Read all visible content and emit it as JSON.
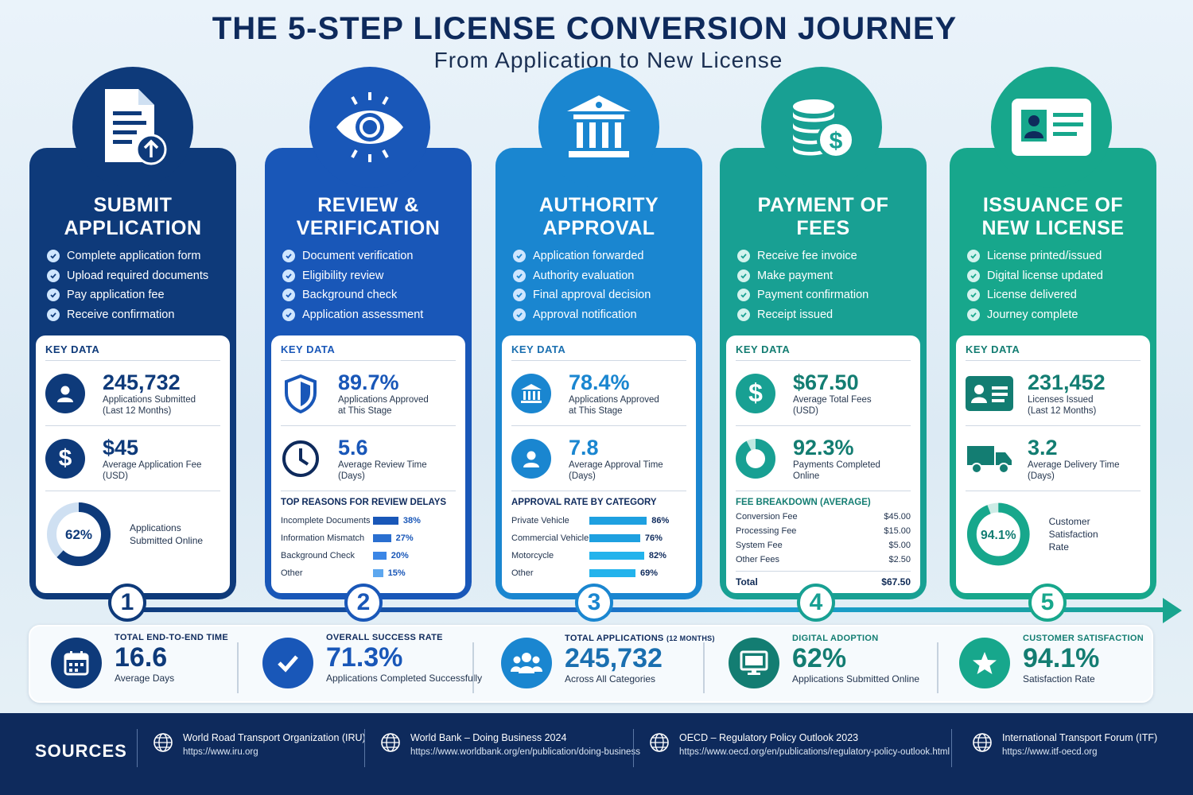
{
  "header": {
    "title": "THE 5-STEP LICENSE CONVERSION JOURNEY",
    "subtitle": "From Application to New License"
  },
  "colors": {
    "step1": "#0e3a7a",
    "step2": "#1957b8",
    "step3": "#1a86d0",
    "step4": "#18a093",
    "step5": "#17a78c",
    "navy": "#0e2a5c"
  },
  "key_data_label": "KEY DATA",
  "steps": [
    {
      "number": "1",
      "icon": "document-upload-icon",
      "title_line1": "SUBMIT",
      "title_line2": "APPLICATION",
      "checks": [
        "Complete application form",
        "Upload required documents",
        "Pay application fee",
        "Receive confirmation"
      ],
      "stat1": {
        "icon": "person-icon",
        "value": "245,732",
        "label1": "Applications Submitted",
        "label2": "(Last 12 Months)"
      },
      "stat2": {
        "icon": "dollar-icon",
        "value": "$45",
        "label1": "Average Application Fee",
        "label2": "(USD)"
      },
      "donut": {
        "value": "62%",
        "fraction": 0.62,
        "label1": "Applications",
        "label2": "Submitted Online"
      }
    },
    {
      "number": "2",
      "icon": "eye-icon",
      "title_line1": "REVIEW &",
      "title_line2": "VERIFICATION",
      "checks": [
        "Document verification",
        "Eligibility review",
        "Background check",
        "Application assessment"
      ],
      "stat1": {
        "icon": "shield-icon",
        "value": "89.7%",
        "label1": "Applications Approved",
        "label2": "at This Stage"
      },
      "stat2": {
        "icon": "clock-icon",
        "value": "5.6",
        "label1": "Average Review Time",
        "label2": "(Days)"
      },
      "bars_title": "TOP REASONS FOR REVIEW DELAYS",
      "bars": [
        {
          "label": "Incomplete Documents",
          "value": "38%",
          "pct": 38
        },
        {
          "label": "Information Mismatch",
          "value": "27%",
          "pct": 27
        },
        {
          "label": "Background Check",
          "value": "20%",
          "pct": 20
        },
        {
          "label": "Other",
          "value": "15%",
          "pct": 15
        }
      ]
    },
    {
      "number": "3",
      "icon": "government-building-icon",
      "title_line1": "AUTHORITY",
      "title_line2": "APPROVAL",
      "checks": [
        "Application forwarded",
        "Authority evaluation",
        "Final approval decision",
        "Approval notification"
      ],
      "stat1": {
        "icon": "bank-icon",
        "value": "78.4%",
        "label1": "Applications Approved",
        "label2": "at This Stage"
      },
      "stat2": {
        "icon": "person-icon",
        "value": "7.8",
        "label1": "Average Approval Time",
        "label2": "(Days)"
      },
      "bars_title": "APPROVAL RATE BY CATEGORY",
      "bars": [
        {
          "label": "Private Vehicle",
          "value": "86%",
          "pct": 86
        },
        {
          "label": "Commercial Vehicle",
          "value": "76%",
          "pct": 76
        },
        {
          "label": "Motorcycle",
          "value": "82%",
          "pct": 82
        },
        {
          "label": "Other",
          "value": "69%",
          "pct": 69
        }
      ]
    },
    {
      "number": "4",
      "icon": "coins-dollar-icon",
      "title_line1": "PAYMENT OF",
      "title_line2": "FEES",
      "checks": [
        "Receive fee invoice",
        "Make payment",
        "Payment confirmation",
        "Receipt issued"
      ],
      "stat1": {
        "icon": "dollar-icon",
        "value": "$67.50",
        "label1": "Average Total Fees",
        "label2": "(USD)"
      },
      "stat2": {
        "icon": "pie-icon",
        "value": "92.3%",
        "label1": "Payments Completed",
        "label2": "Online",
        "fraction": 0.923
      },
      "fees_title": "FEE BREAKDOWN (AVERAGE)",
      "fees": [
        {
          "label": "Conversion Fee",
          "value": "$45.00"
        },
        {
          "label": "Processing Fee",
          "value": "$15.00"
        },
        {
          "label": "System Fee",
          "value": "$5.00"
        },
        {
          "label": "Other Fees",
          "value": "$2.50"
        }
      ],
      "fees_total_label": "Total",
      "fees_total_value": "$67.50"
    },
    {
      "number": "5",
      "icon": "id-card-icon",
      "title_line1": "ISSUANCE OF",
      "title_line2": "NEW LICENSE",
      "checks": [
        "License printed/issued",
        "Digital license updated",
        "License delivered",
        "Journey complete"
      ],
      "stat1": {
        "icon": "id-card-icon",
        "value": "231,452",
        "label1": "Licenses Issued",
        "label2": "(Last 12 Months)"
      },
      "stat2": {
        "icon": "truck-icon",
        "value": "3.2",
        "label1": "Average Delivery Time",
        "label2": "(Days)"
      },
      "donut": {
        "value": "94.1%",
        "fraction": 0.941,
        "label1": "Customer Satisfaction",
        "label2": "Rate"
      }
    }
  ],
  "summary": [
    {
      "icon": "calendar-icon",
      "label": "TOTAL  END-TO-END TIME",
      "value": "16.6",
      "sub": "Average Days"
    },
    {
      "icon": "checkmark-icon",
      "label": "OVERALL SUCCESS RATE",
      "value": "71.3%",
      "sub": "Applications Completed Successfully"
    },
    {
      "icon": "people-icon",
      "label": "TOTAL APPLICATIONS",
      "label_small": "(12 MONTHS)",
      "value": "245,732",
      "sub": "Across All Categories"
    },
    {
      "icon": "monitor-icon",
      "label": "DIGITAL  ADOPTION",
      "value": "62%",
      "sub": "Applications Submitted Online"
    },
    {
      "icon": "star-icon",
      "label": "CUSTOMER SATISFACTION",
      "value": "94.1%",
      "sub": "Satisfaction Rate"
    }
  ],
  "sources": {
    "title": "SOURCES",
    "items": [
      {
        "name": "World Road Transport Organization (IRU)",
        "url": "https://www.iru.org"
      },
      {
        "name": "World Bank – Doing Business 2024",
        "url": "https://www.worldbank.org/en/publication/doing-business"
      },
      {
        "name": "OECD – Regulatory Policy Outlook 2023",
        "url": "https://www.oecd.org/en/publications/regulatory-policy-outlook.html"
      },
      {
        "name": "International Transport Forum (ITF)",
        "url": "https://www.itf-oecd.org"
      }
    ]
  }
}
